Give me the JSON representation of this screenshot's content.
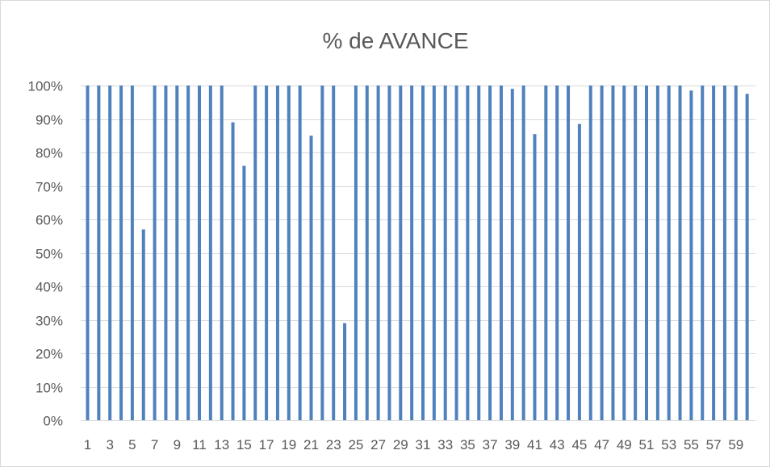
{
  "chart_data": {
    "type": "bar",
    "title": "% de AVANCE",
    "xlabel": "",
    "ylabel": "",
    "ylim": [
      0,
      1
    ],
    "y_tick_labels": [
      "0%",
      "10%",
      "20%",
      "30%",
      "40%",
      "50%",
      "60%",
      "70%",
      "80%",
      "90%",
      "100%"
    ],
    "y_ticks": [
      0,
      0.1,
      0.2,
      0.3,
      0.4,
      0.5,
      0.6,
      0.7,
      0.8,
      0.9,
      1.0
    ],
    "categories": [
      "1",
      "2",
      "3",
      "4",
      "5",
      "6",
      "7",
      "8",
      "9",
      "10",
      "11",
      "12",
      "13",
      "14",
      "15",
      "16",
      "17",
      "18",
      "19",
      "20",
      "21",
      "22",
      "23",
      "24",
      "25",
      "26",
      "27",
      "28",
      "29",
      "30",
      "31",
      "32",
      "33",
      "34",
      "35",
      "36",
      "37",
      "38",
      "39",
      "40",
      "41",
      "42",
      "43",
      "44",
      "45",
      "46",
      "47",
      "48",
      "49",
      "50",
      "51",
      "52",
      "53",
      "54",
      "55",
      "56",
      "57",
      "58",
      "59",
      "60"
    ],
    "x_tick_labels": [
      "1",
      "3",
      "5",
      "7",
      "9",
      "11",
      "13",
      "15",
      "17",
      "19",
      "21",
      "23",
      "25",
      "27",
      "29",
      "31",
      "33",
      "35",
      "37",
      "39",
      "41",
      "43",
      "45",
      "47",
      "49",
      "51",
      "53",
      "55",
      "57",
      "59"
    ],
    "values": [
      1,
      1,
      1,
      1,
      1,
      0.57,
      1,
      1,
      1,
      1,
      1,
      1,
      1,
      0.89,
      0.76,
      1,
      1,
      1,
      1,
      1,
      0.85,
      1,
      1,
      0.29,
      1,
      1,
      1,
      1,
      1,
      1,
      1,
      1,
      1,
      1,
      1,
      1,
      1,
      1,
      0.99,
      1,
      0.855,
      1,
      1,
      1,
      0.885,
      1,
      1,
      1,
      1,
      1,
      1,
      1,
      1,
      1,
      0.985,
      1,
      1,
      1,
      1,
      0.975
    ],
    "grid": true,
    "legend": "none",
    "bar_color": "#4f81bd",
    "grid_color": "#d9d9d9",
    "text_color": "#595959"
  }
}
